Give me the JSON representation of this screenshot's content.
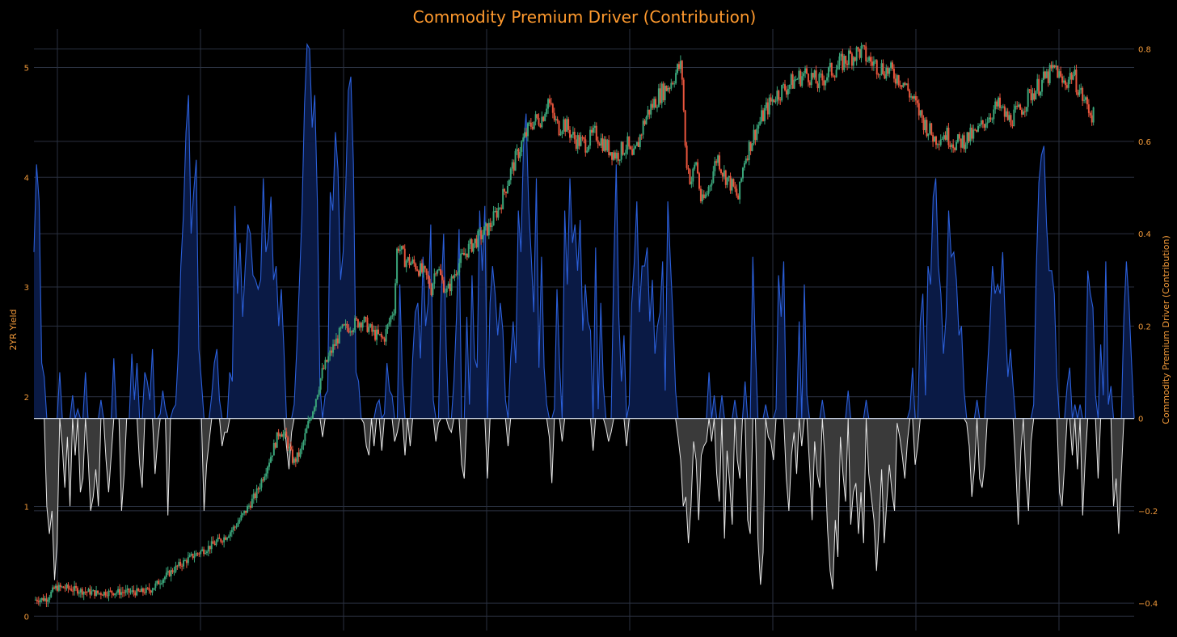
{
  "chart_data": {
    "type": "line",
    "title": "Commodity Premium Driver (Contribution)",
    "left_axis": {
      "title": "2YR Yield",
      "range": [
        -0.02,
        5.35
      ],
      "ticks": [
        "0",
        "1",
        "2",
        "3",
        "4",
        "5"
      ]
    },
    "right_axis": {
      "title": "Commodity Premium Driver (Contribution)",
      "range": [
        -0.433,
        0.843
      ],
      "ticks": [
        "−0.4",
        "−0.2",
        "0",
        "0.2",
        "0.4",
        "0.6",
        "0.8"
      ]
    },
    "grid": true,
    "x_gridlines": 8,
    "legend": "none",
    "colors": {
      "background": "#000000",
      "grid": "#2a3140",
      "title": "#ff9a2e",
      "tick": "#f29a3a",
      "candle_up": "#3aa57a",
      "candle_down": "#e8553d",
      "positive_line": "#2b5fd9",
      "positive_fill": "#0a1a45",
      "negative_line": "#e6e6e6",
      "negative_fill": "#3a3a3a",
      "zero_line": "#cfd8e8"
    },
    "series": [
      {
        "name": "",
        "kind": "candlestick",
        "axis": "left",
        "close_path": [
          [
            0,
            0.15
          ],
          [
            0.012,
            0.16
          ],
          [
            0.02,
            0.26
          ],
          [
            0.03,
            0.26
          ],
          [
            0.045,
            0.23
          ],
          [
            0.06,
            0.21
          ],
          [
            0.075,
            0.22
          ],
          [
            0.09,
            0.22
          ],
          [
            0.1,
            0.22
          ],
          [
            0.11,
            0.24
          ],
          [
            0.12,
            0.33
          ],
          [
            0.135,
            0.45
          ],
          [
            0.15,
            0.55
          ],
          [
            0.165,
            0.63
          ],
          [
            0.18,
            0.72
          ],
          [
            0.19,
            0.82
          ],
          [
            0.2,
            0.96
          ],
          [
            0.21,
            1.12
          ],
          [
            0.22,
            1.37
          ],
          [
            0.225,
            1.5
          ],
          [
            0.232,
            1.7
          ],
          [
            0.238,
            1.62
          ],
          [
            0.245,
            1.4
          ],
          [
            0.252,
            1.5
          ],
          [
            0.258,
            1.72
          ],
          [
            0.265,
            1.95
          ],
          [
            0.272,
            2.22
          ],
          [
            0.28,
            2.4
          ],
          [
            0.29,
            2.6
          ],
          [
            0.3,
            2.65
          ],
          [
            0.31,
            2.7
          ],
          [
            0.32,
            2.58
          ],
          [
            0.33,
            2.52
          ],
          [
            0.336,
            2.7
          ],
          [
            0.34,
            2.82
          ],
          [
            0.343,
            3.4
          ],
          [
            0.35,
            3.25
          ],
          [
            0.36,
            3.2
          ],
          [
            0.37,
            3.1
          ],
          [
            0.375,
            2.98
          ],
          [
            0.38,
            3.22
          ],
          [
            0.385,
            3.05
          ],
          [
            0.39,
            2.95
          ],
          [
            0.4,
            3.2
          ],
          [
            0.41,
            3.35
          ],
          [
            0.42,
            3.45
          ],
          [
            0.43,
            3.55
          ],
          [
            0.44,
            3.75
          ],
          [
            0.45,
            4.05
          ],
          [
            0.46,
            4.3
          ],
          [
            0.47,
            4.5
          ],
          [
            0.48,
            4.55
          ],
          [
            0.485,
            4.72
          ],
          [
            0.49,
            4.55
          ],
          [
            0.495,
            4.45
          ],
          [
            0.5,
            4.5
          ],
          [
            0.51,
            4.35
          ],
          [
            0.52,
            4.3
          ],
          [
            0.53,
            4.4
          ],
          [
            0.54,
            4.28
          ],
          [
            0.55,
            4.2
          ],
          [
            0.56,
            4.3
          ],
          [
            0.565,
            4.15
          ],
          [
            0.57,
            4.3
          ],
          [
            0.575,
            4.48
          ],
          [
            0.58,
            4.6
          ],
          [
            0.59,
            4.75
          ],
          [
            0.6,
            4.85
          ],
          [
            0.61,
            5.02
          ],
          [
            0.612,
            4.9
          ],
          [
            0.615,
            4.2
          ],
          [
            0.62,
            3.95
          ],
          [
            0.625,
            4.15
          ],
          [
            0.63,
            3.75
          ],
          [
            0.635,
            3.85
          ],
          [
            0.64,
            4.02
          ],
          [
            0.645,
            4.2
          ],
          [
            0.65,
            4.05
          ],
          [
            0.66,
            3.9
          ],
          [
            0.665,
            3.8
          ],
          [
            0.67,
            4.15
          ],
          [
            0.68,
            4.4
          ],
          [
            0.69,
            4.6
          ],
          [
            0.7,
            4.75
          ],
          [
            0.71,
            4.82
          ],
          [
            0.72,
            4.9
          ],
          [
            0.73,
            4.95
          ],
          [
            0.74,
            4.85
          ],
          [
            0.75,
            4.95
          ],
          [
            0.76,
            5.02
          ],
          [
            0.77,
            5.1
          ],
          [
            0.78,
            5.15
          ],
          [
            0.79,
            5.05
          ],
          [
            0.8,
            5.0
          ],
          [
            0.81,
            4.95
          ],
          [
            0.82,
            4.88
          ],
          [
            0.83,
            4.7
          ],
          [
            0.84,
            4.5
          ],
          [
            0.85,
            4.35
          ],
          [
            0.86,
            4.4
          ],
          [
            0.87,
            4.3
          ],
          [
            0.88,
            4.35
          ],
          [
            0.89,
            4.4
          ],
          [
            0.9,
            4.55
          ],
          [
            0.91,
            4.65
          ],
          [
            0.92,
            4.52
          ],
          [
            0.93,
            4.6
          ],
          [
            0.94,
            4.75
          ],
          [
            0.95,
            4.85
          ],
          [
            0.96,
            4.95
          ],
          [
            0.965,
            5.0
          ],
          [
            0.97,
            4.85
          ],
          [
            0.975,
            4.88
          ],
          [
            0.98,
            4.95
          ],
          [
            0.99,
            4.72
          ],
          [
            1.0,
            4.55
          ]
        ]
      },
      {
        "name": "",
        "kind": "bar-line",
        "axis": "right",
        "values": [
          0.36,
          0.55,
          0.47,
          0.12,
          0.09,
          -0.19,
          -0.25,
          -0.2,
          -0.35,
          -0.27,
          0.1,
          -0.06,
          -0.15,
          -0.04,
          -0.19,
          0.05,
          -0.08,
          0.02,
          -0.16,
          -0.13,
          0.1,
          -0.08,
          -0.2,
          -0.17,
          -0.11,
          -0.19,
          0.04,
          0.0,
          -0.09,
          -0.16,
          -0.08,
          0.13,
          0.0,
          0.0,
          -0.2,
          -0.12,
          0.0,
          0.0,
          0.14,
          0.04,
          0.12,
          -0.1,
          -0.15,
          0.1,
          0.08,
          0.04,
          0.15,
          -0.12,
          -0.05,
          0.01,
          0.06,
          0.02,
          -0.21,
          0.0,
          0.02,
          0.03,
          0.14,
          0.33,
          0.44,
          0.62,
          0.7,
          0.4,
          0.49,
          0.56,
          0.15,
          0.08,
          -0.2,
          -0.1,
          -0.05,
          0.05,
          0.12,
          0.15,
          0.04,
          -0.06,
          -0.03,
          -0.03,
          0.1,
          0.08,
          0.46,
          0.27,
          0.38,
          0.22,
          0.33,
          0.42,
          0.4,
          0.31,
          0.3,
          0.28,
          0.3,
          0.52,
          0.36,
          0.39,
          0.48,
          0.3,
          0.33,
          0.2,
          0.28,
          0.15,
          -0.06,
          -0.11,
          -0.03,
          0.03,
          0.15,
          0.29,
          0.44,
          0.68,
          0.81,
          0.8,
          0.63,
          0.7,
          0.47,
          0.07,
          -0.04,
          0.05,
          0.06,
          0.49,
          0.45,
          0.62,
          0.54,
          0.3,
          0.36,
          0.5,
          0.71,
          0.74,
          0.55,
          0.1,
          0.08,
          0.0,
          -0.01,
          -0.06,
          -0.08,
          0.0,
          -0.06,
          0.03,
          0.04,
          -0.07,
          0.01,
          0.12,
          0.06,
          0.05,
          -0.05,
          -0.03,
          0.29,
          0.09,
          -0.08,
          0.0,
          -0.06,
          0.13,
          0.23,
          0.25,
          0.13,
          0.35,
          0.2,
          0.25,
          0.42,
          0.04,
          -0.05,
          -0.01,
          0.26,
          0.4,
          0.15,
          -0.02,
          -0.03,
          0.08,
          0.22,
          0.41,
          -0.1,
          -0.13,
          0.22,
          0.03,
          0.31,
          0.13,
          0.11,
          0.45,
          0.32,
          0.46,
          -0.13,
          0.25,
          0.33,
          0.27,
          0.18,
          0.25,
          0.19,
          0.04,
          -0.06,
          0.13,
          0.21,
          0.12,
          0.45,
          0.36,
          0.59,
          0.66,
          0.46,
          0.35,
          0.23,
          0.52,
          0.11,
          0.35,
          0.11,
          0.03,
          -0.04,
          -0.14,
          0.02,
          0.28,
          0.12,
          -0.05,
          0.45,
          0.29,
          0.52,
          0.38,
          0.42,
          0.32,
          0.43,
          0.19,
          0.29,
          0.21,
          0.19,
          -0.07,
          0.37,
          0.02,
          0.25,
          0.07,
          -0.02,
          -0.05,
          -0.03,
          0.32,
          0.55,
          0.22,
          0.08,
          0.18,
          -0.06,
          0.03,
          0.25,
          0.34,
          0.47,
          0.23,
          0.33,
          0.33,
          0.37,
          0.21,
          0.3,
          0.14,
          0.2,
          0.23,
          0.34,
          0.06,
          0.47,
          0.34,
          0.22,
          0.06,
          -0.04,
          -0.09,
          -0.19,
          -0.17,
          -0.27,
          -0.19,
          -0.05,
          -0.09,
          -0.22,
          -0.08,
          -0.06,
          -0.05,
          0.1,
          -0.05,
          0.05,
          -0.12,
          -0.18,
          0.05,
          -0.26,
          -0.07,
          -0.14,
          -0.23,
          0.04,
          -0.09,
          -0.13,
          0.0,
          0.08,
          -0.22,
          -0.25,
          0.35,
          0.15,
          -0.26,
          -0.36,
          -0.29,
          0.03,
          -0.04,
          -0.05,
          -0.09,
          0.02,
          0.31,
          0.22,
          0.34,
          -0.13,
          -0.2,
          -0.08,
          -0.03,
          -0.12,
          0.21,
          -0.06,
          0.29,
          0.05,
          -0.1,
          -0.22,
          -0.05,
          -0.12,
          -0.15,
          0.04,
          -0.09,
          -0.24,
          -0.33,
          -0.37,
          -0.22,
          -0.3,
          -0.04,
          -0.12,
          -0.18,
          0.06,
          -0.23,
          -0.16,
          -0.14,
          -0.25,
          -0.16,
          -0.27,
          0.04,
          -0.12,
          -0.17,
          -0.22,
          -0.33,
          -0.23,
          -0.11,
          -0.27,
          -0.18,
          -0.1,
          -0.16,
          -0.2,
          -0.01,
          -0.04,
          -0.08,
          -0.13,
          -0.05,
          0.02,
          0.11,
          -0.1,
          -0.06,
          0.21,
          0.27,
          0.05,
          0.33,
          0.29,
          0.48,
          0.52,
          0.33,
          0.27,
          0.14,
          0.22,
          0.45,
          0.35,
          0.36,
          0.3,
          0.18,
          0.2,
          0.06,
          -0.01,
          -0.06,
          -0.17,
          -0.11,
          0.04,
          -0.13,
          -0.15,
          -0.1,
          0.1,
          0.2,
          0.33,
          0.27,
          0.29,
          0.27,
          0.36,
          0.21,
          0.09,
          0.15,
          0.07,
          -0.1,
          -0.23,
          -0.07,
          0.0,
          -0.13,
          -0.2,
          -0.05,
          0.03,
          0.32,
          0.51,
          0.57,
          0.59,
          0.42,
          0.32,
          0.32,
          0.27,
          0.09,
          -0.16,
          -0.19,
          -0.1,
          0.07,
          0.11,
          -0.08,
          0.03,
          -0.11,
          0.03,
          -0.21,
          -0.09,
          0.32,
          0.27,
          0.24,
          0.05,
          -0.13,
          0.16,
          0.05,
          0.34,
          0.03,
          0.07,
          -0.19,
          -0.13,
          -0.25,
          -0.12,
          0.22,
          0.34,
          0.25,
          0.12,
          0.0
        ]
      }
    ]
  }
}
